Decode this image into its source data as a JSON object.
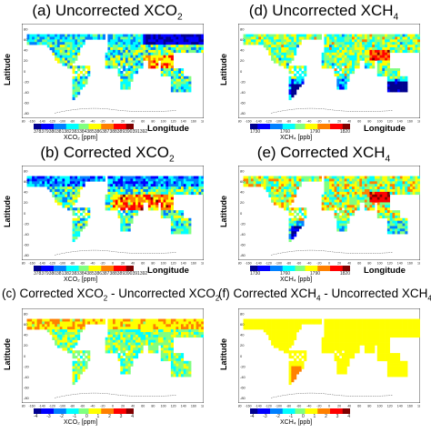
{
  "panels": [
    {
      "id": "a",
      "title": "(a) Uncorrected XCO",
      "sub": "2",
      "title_tail": "",
      "small": false,
      "cbar_label": "XCO₂ [ppm]",
      "cbar_ticks": [
        "378",
        "379",
        "380",
        "381",
        "382",
        "383",
        "384",
        "385",
        "386",
        "387",
        "388",
        "389",
        "390",
        "391",
        "392"
      ],
      "longitude_label": "Longitude",
      "lat_label": "Latitude",
      "scheme": "uxco2",
      "show_xlab": true
    },
    {
      "id": "d",
      "title": "(d) Uncorrected XCH",
      "sub": "4",
      "title_tail": "",
      "small": false,
      "cbar_label": "XCH₄ [ppb]",
      "cbar_ticks": [
        "1730",
        "1760",
        "1790",
        "1820"
      ],
      "longitude_label": "Longitude",
      "lat_label": "Latitude",
      "scheme": "uxch4",
      "show_xlab": true
    },
    {
      "id": "b",
      "title": "(b) Corrected XCO",
      "sub": "2",
      "title_tail": "",
      "small": false,
      "cbar_label": "XCO₂ [ppm]",
      "cbar_ticks": [
        "378",
        "379",
        "380",
        "381",
        "382",
        "383",
        "384",
        "385",
        "386",
        "387",
        "388",
        "389",
        "390",
        "391",
        "392"
      ],
      "longitude_label": "Longitude",
      "lat_label": "Latitude",
      "scheme": "cxco2",
      "show_xlab": true
    },
    {
      "id": "e",
      "title": "(e) Corrected XCH",
      "sub": "4",
      "title_tail": "",
      "small": false,
      "cbar_label": "XCH₄ [ppb]",
      "cbar_ticks": [
        "1730",
        "1760",
        "1790",
        "1820"
      ],
      "longitude_label": "Longitude",
      "lat_label": "Latitude",
      "scheme": "cxch4",
      "show_xlab": true
    },
    {
      "id": "c",
      "title": "(c) Corrected XCO",
      "sub": "2",
      "title_tail": " - Uncorrected XCO",
      "sub2": "2",
      "small": true,
      "cbar_label": "XCO₂ [ppm]",
      "cbar_ticks": [
        "-4",
        "-3",
        "-2",
        "-1",
        "0",
        "1",
        "2",
        "3",
        "4"
      ],
      "longitude_label": "",
      "lat_label": "Latitude",
      "scheme": "dxco2",
      "show_xlab": false
    },
    {
      "id": "f",
      "title": "(f) Corrected XCH",
      "sub": "4",
      "title_tail": " - Uncorrected XCH",
      "sub2": "4",
      "small": true,
      "cbar_label": "XCH₄ [ppb]",
      "cbar_ticks": [
        "-4",
        "-3",
        "-2",
        "-1",
        "0",
        "1",
        "2",
        "3",
        "4"
      ],
      "longitude_label": "",
      "lat_label": "Latitude",
      "scheme": "dxch4",
      "show_xlab": false
    }
  ],
  "lon_ticks": [
    "-180",
    "-160",
    "-140",
    "-120",
    "-100",
    "-80",
    "-60",
    "-40",
    "-20",
    "0",
    "20",
    "40",
    "60",
    "80",
    "100",
    "120",
    "140",
    "160",
    "180"
  ],
  "lat_ticks": [
    "80",
    "60",
    "40",
    "20",
    "0",
    "-20",
    "-40",
    "-60",
    "-80"
  ],
  "colors": {
    "colorbar": [
      "#00008f",
      "#0000ff",
      "#0080ff",
      "#00ffff",
      "#80ff80",
      "#ffff00",
      "#ff8000",
      "#ff0000",
      "#800000"
    ]
  }
}
